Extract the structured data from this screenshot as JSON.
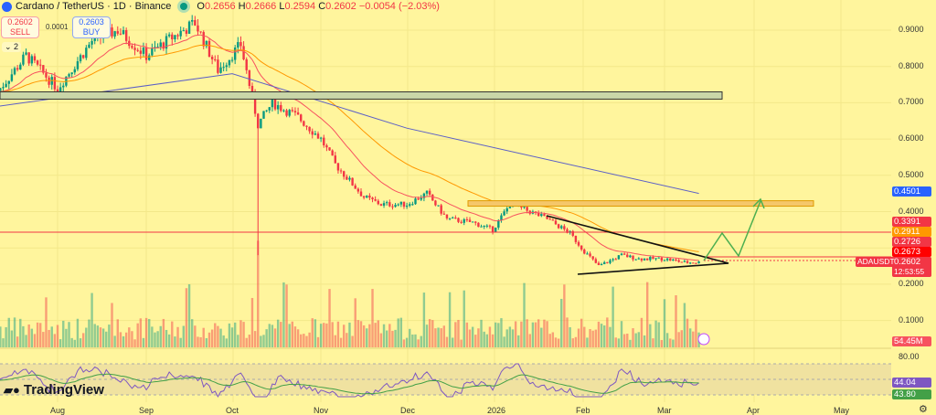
{
  "header": {
    "symbol": "Cardano / TetherUS · 1D · Binance",
    "open_label": "O",
    "open": "0.2656",
    "high_label": "H",
    "high": "0.2666",
    "low_label": "L",
    "low": "0.2594",
    "close_label": "C",
    "close": "0.2602",
    "change": "−0.0054 (−2.03%)"
  },
  "trade": {
    "sell_price": "0.2602",
    "sell_label": "SELL",
    "spread": "0.0001",
    "buy_price": "0.2603",
    "buy_label": "BUY",
    "collapsed_count": "2"
  },
  "price_axis": {
    "ticks": [
      "0.9000",
      "0.8000",
      "0.7000",
      "0.6000",
      "0.5000",
      "0.4000",
      "0.2000",
      "0.1000"
    ]
  },
  "price_tags": {
    "ma200": "0.4501",
    "p1": "0.3391",
    "p2": "0.2911",
    "p3": "0.2726",
    "p4": "0.2673",
    "last": "0.2602",
    "countdown": "12:53:55",
    "symbol_tag": "ADAUSDT",
    "volume": "54.45M",
    "rsi_top": "80.00",
    "rsi": "44.04",
    "rsi_ma": "43.80"
  },
  "time_axis": [
    "Aug",
    "Sep",
    "Oct",
    "Nov",
    "Dec",
    "2026",
    "Feb",
    "Mar",
    "Apr",
    "May"
  ],
  "branding": "TradingView",
  "colors": {
    "bg": "#fff59d",
    "up": "#089981",
    "down": "#f23645",
    "ma200": "#5b5fc7",
    "ema": "#ff9800",
    "ema_fast": "#f7525f",
    "rsi": "#7e57c2"
  },
  "chart_data": {
    "type": "candlestick",
    "ylim": [
      0.17,
      0.98
    ],
    "grid": true,
    "closes": [
      [
        "2025-07-11",
        0.73
      ],
      [
        "2025-07-21",
        0.83
      ],
      [
        "2025-08-01",
        0.74
      ],
      [
        "2025-08-13",
        0.87
      ],
      [
        "2025-08-22",
        0.9
      ],
      [
        "2025-09-01",
        0.83
      ],
      [
        "2025-09-10",
        0.88
      ],
      [
        "2025-09-18",
        0.92
      ],
      [
        "2025-09-26",
        0.79
      ],
      [
        "2025-10-04",
        0.86
      ],
      [
        "2025-10-10",
        0.64
      ],
      [
        "2025-10-15",
        0.7
      ],
      [
        "2025-10-24",
        0.66
      ],
      [
        "2025-11-01",
        0.6
      ],
      [
        "2025-11-06",
        0.53
      ],
      [
        "2025-11-16",
        0.44
      ],
      [
        "2025-11-22",
        0.42
      ],
      [
        "2025-12-01",
        0.42
      ],
      [
        "2025-12-08",
        0.45
      ],
      [
        "2025-12-15",
        0.38
      ],
      [
        "2025-12-24",
        0.37
      ],
      [
        "2025-12-31",
        0.35
      ],
      [
        "2026-01-06",
        0.42
      ],
      [
        "2026-01-13",
        0.4
      ],
      [
        "2026-01-19",
        0.38
      ],
      [
        "2026-01-27",
        0.34
      ],
      [
        "2026-02-01",
        0.29
      ],
      [
        "2026-02-06",
        0.25
      ],
      [
        "2026-02-14",
        0.28
      ],
      [
        "2026-02-20",
        0.27
      ],
      [
        "2026-03-01",
        0.27
      ],
      [
        "2026-03-08",
        0.26
      ],
      [
        "2026-03-13",
        0.2602
      ]
    ],
    "ma200": [
      [
        "2025-07-11",
        0.69
      ],
      [
        "2025-10-01",
        0.78
      ],
      [
        "2025-12-01",
        0.63
      ],
      [
        "2026-03-13",
        0.4501
      ]
    ],
    "zones": [
      {
        "low": 0.71,
        "high": 0.73,
        "from": "2025-07-11",
        "to": "2026-03-20"
      },
      {
        "low": 0.415,
        "high": 0.43,
        "from": "2025-12-23",
        "to": "2026-04-17"
      }
    ],
    "levels": [
      0.3391,
      0.2673,
      0.2602
    ],
    "rsi": {
      "value": 44.04,
      "ma": 43.8,
      "upper": 70,
      "lower": 30
    }
  }
}
